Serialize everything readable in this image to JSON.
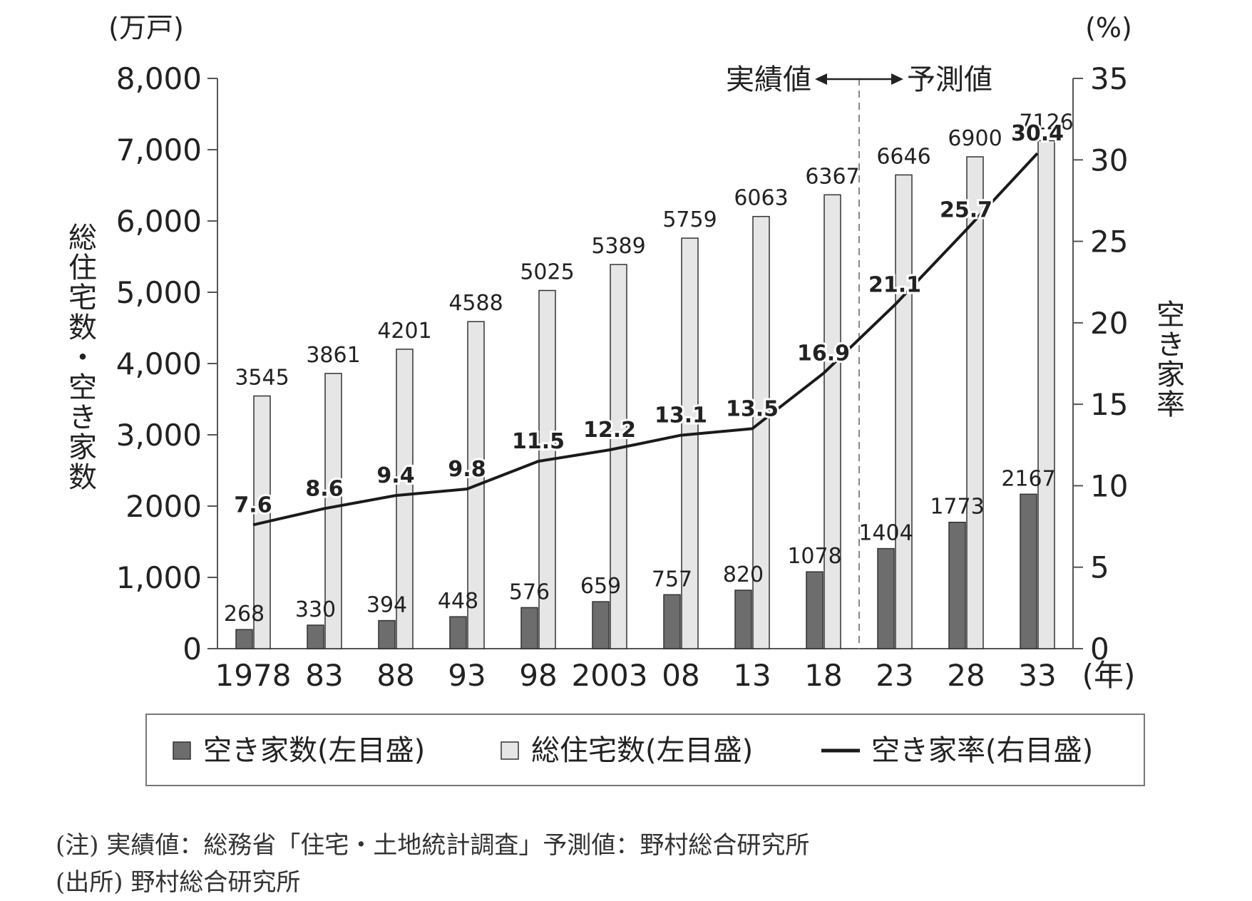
{
  "chart_data": {
    "type": "bar",
    "categories": [
      "1978",
      "83",
      "88",
      "93",
      "98",
      "2003",
      "08",
      "13",
      "18",
      "23",
      "28",
      "33"
    ],
    "x_unit": "(年)",
    "series": [
      {
        "name": "空き家数(左目盛)",
        "type": "bar",
        "axis": "left",
        "values": [
          268,
          330,
          394,
          448,
          576,
          659,
          757,
          820,
          1078,
          1404,
          1773,
          2167
        ]
      },
      {
        "name": "総住宅数(左目盛)",
        "type": "bar",
        "axis": "left",
        "values": [
          3545,
          3861,
          4201,
          4588,
          5025,
          5389,
          5759,
          6063,
          6367,
          6646,
          6900,
          7126
        ]
      },
      {
        "name": "空き家率(右目盛)",
        "type": "line",
        "axis": "right",
        "values": [
          7.6,
          8.6,
          9.4,
          9.8,
          11.5,
          12.2,
          13.1,
          13.5,
          16.9,
          21.1,
          25.7,
          30.4
        ]
      }
    ],
    "left_axis": {
      "unit": "(万戸)",
      "label": "総住宅数・空き家数",
      "ylim": [
        0,
        8000
      ],
      "ticks": [
        0,
        1000,
        2000,
        3000,
        4000,
        5000,
        6000,
        7000,
        8000
      ],
      "tick_labels": [
        "0",
        "1,000",
        "2000",
        "3,000",
        "4,000",
        "5,000",
        "6,000",
        "7,000",
        "8,000"
      ]
    },
    "right_axis": {
      "unit": "(%)",
      "label": "空き家率",
      "ylim": [
        0,
        35
      ],
      "ticks": [
        0,
        5,
        10,
        15,
        20,
        25,
        30,
        35
      ],
      "tick_labels": [
        "0",
        "5",
        "10",
        "15",
        "20",
        "25",
        "30",
        "35"
      ]
    },
    "divider": {
      "after_category": "18",
      "left_label": "実績値",
      "right_label": "予測値"
    },
    "legend_position": "bottom",
    "grid": false,
    "colors": {
      "vacant_bar": "#6d6d6d",
      "total_bar": "#e6e6e6",
      "rate_line": "#1a1a1a",
      "axis": "#555555"
    }
  },
  "notes": [
    "(注) 実績値：総務省「住宅・土地統計調査」予測値：野村総合研究所",
    "(出所) 野村総合研究所"
  ]
}
